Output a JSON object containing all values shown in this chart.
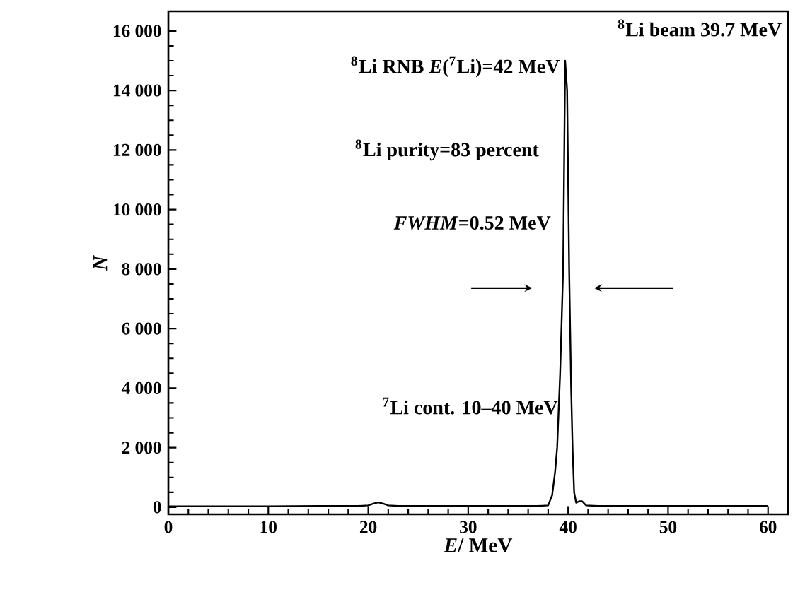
{
  "chart_data": {
    "type": "line",
    "xlabel": "*E*/ MeV",
    "ylabel": "*N*",
    "x": [
      0,
      5,
      10,
      15,
      19,
      20,
      20.5,
      21,
      21.5,
      22,
      23,
      30,
      35,
      37,
      38,
      38.4,
      38.7,
      38.9,
      39.2,
      39.5,
      39.7,
      39.9,
      40.1,
      40.3,
      40.45,
      40.6,
      40.8,
      41.1,
      41.4,
      41.8,
      43,
      50,
      55,
      60
    ],
    "series": [
      {
        "color": "#000000",
        "values": [
          30,
          30,
          30,
          40,
          40,
          60,
          120,
          160,
          120,
          60,
          40,
          40,
          40,
          40,
          60,
          400,
          1200,
          2000,
          4500,
          8000,
          15000,
          14000,
          8000,
          4000,
          1900,
          500,
          150,
          200,
          200,
          60,
          40,
          40,
          40,
          40
        ]
      }
    ],
    "xlim": [
      0,
      62
    ],
    "ylim": [
      -240,
      16660
    ],
    "xticks": [
      0,
      10,
      20,
      30,
      40,
      50,
      60
    ],
    "yticks": [
      {
        "value": 0,
        "label": "0"
      },
      {
        "value": 2000,
        "label": "2 000"
      },
      {
        "value": 4000,
        "label": "4 000"
      },
      {
        "value": 6000,
        "label": "6 000"
      },
      {
        "value": 8000,
        "label": "8 000"
      },
      {
        "value": 10000,
        "label": "10 000"
      },
      {
        "value": 12000,
        "label": "12 000"
      },
      {
        "value": 14000,
        "label": "14 000"
      },
      {
        "value": 16000,
        "label": "16 000"
      }
    ],
    "annotations": [
      "$^{8}$Li beam 39.7 MeV",
      "$^{8}$Li RNB *E*($^{7}$Li)=42 MeV",
      "$^{8}$Li purity=83 percent",
      "*FWHM*=0.52 MeV",
      "$^{7}$Li cont. 10–40 MeV"
    ],
    "grid": false,
    "marker": "none",
    "line_style": "solid"
  }
}
